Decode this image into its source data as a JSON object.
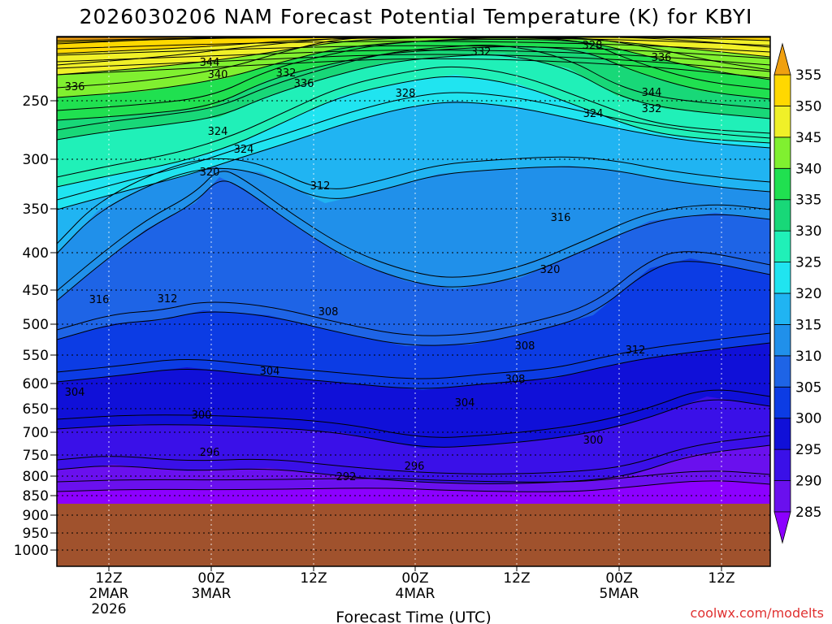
{
  "chart_data": {
    "type": "heatmap",
    "title": "2026030206 NAM Forecast Potential Temperature (K) for KBYI",
    "xlabel": "Forecast Time (UTC)",
    "source": "coolwx.com/modelts",
    "y_scale": "log-pressure",
    "y_ticks": [
      250,
      300,
      350,
      400,
      450,
      500,
      550,
      600,
      650,
      700,
      750,
      800,
      850,
      900,
      950,
      1000
    ],
    "ylim": [
      1000,
      200
    ],
    "x_ticks": [
      {
        "lines": [
          "12Z",
          "2MAR",
          "2026"
        ]
      },
      {
        "lines": [
          "00Z",
          "3MAR"
        ]
      },
      {
        "lines": [
          "12Z"
        ]
      },
      {
        "lines": [
          "00Z",
          "4MAR"
        ]
      },
      {
        "lines": [
          "12Z"
        ]
      },
      {
        "lines": [
          "00Z",
          "5MAR"
        ]
      },
      {
        "lines": [
          "12Z"
        ]
      }
    ],
    "colorbar": {
      "levels": [
        285,
        290,
        295,
        300,
        305,
        310,
        315,
        320,
        325,
        330,
        335,
        340,
        345,
        350,
        355
      ],
      "colors": [
        "#8c00ff",
        "#6a10ee",
        "#3a10e8",
        "#1010d8",
        "#0c3ce4",
        "#1e64e6",
        "#2090ea",
        "#20b4f2",
        "#20e4f0",
        "#20f0b8",
        "#18d878",
        "#20e050",
        "#80f030",
        "#f0f028",
        "#ffd800",
        "#f0a010"
      ]
    },
    "contour_labels": [
      "344",
      "340",
      "336",
      "332",
      "336",
      "332",
      "328",
      "336",
      "344",
      "332",
      "328",
      "324",
      "324",
      "324",
      "320",
      "312",
      "316",
      "320",
      "316",
      "312",
      "308",
      "308",
      "312",
      "304",
      "308",
      "304",
      "304",
      "300",
      "300",
      "296",
      "296",
      "292"
    ],
    "ground_color": "#a0522d",
    "grid": true
  }
}
